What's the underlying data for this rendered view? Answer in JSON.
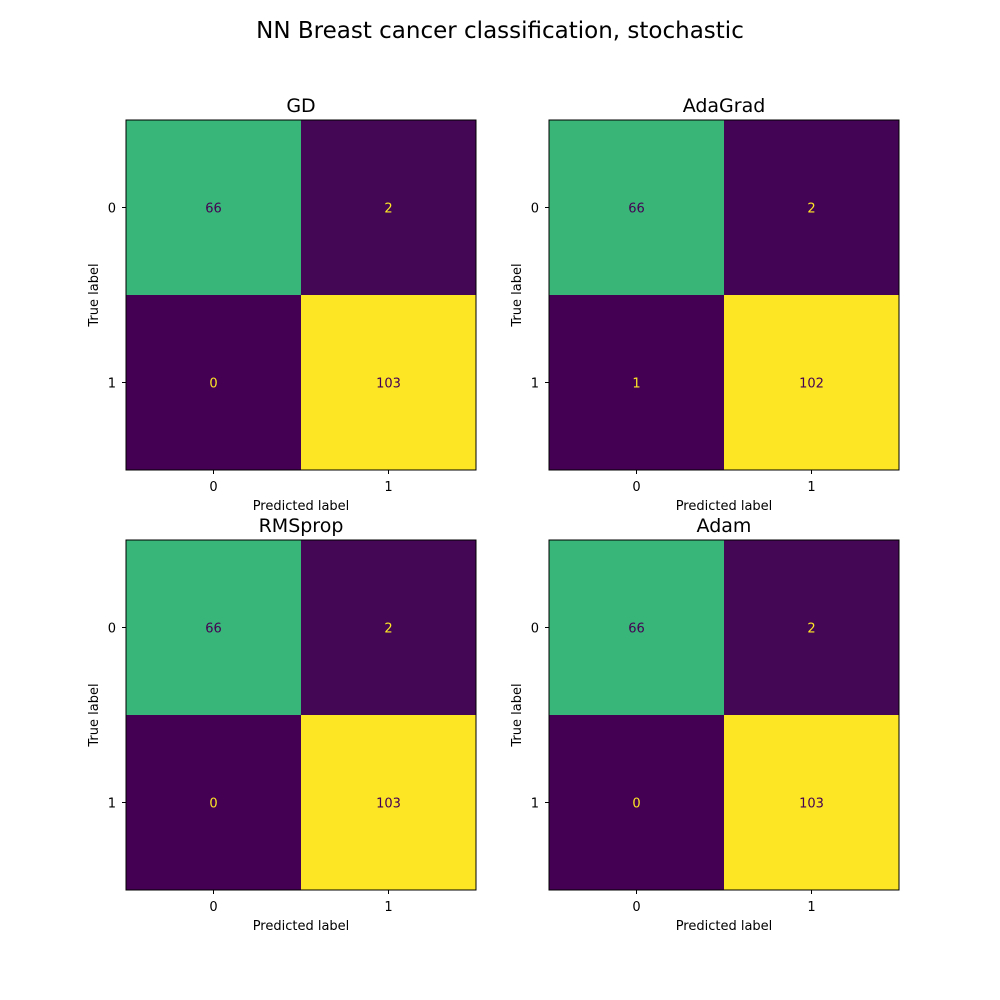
{
  "suptitle": "NN Breast cancer classification, stochastic",
  "colors": {
    "viridis_low": "#440154",
    "viridis_mid": "#2db27d",
    "viridis_high": "#fde725",
    "text_on_dark": "#fde725",
    "text_on_light": "#440154",
    "axes_frame": "#000000"
  },
  "chart_data": [
    {
      "type": "heatmap",
      "title": "GD",
      "xlabel": "Predicted label",
      "ylabel": "True label",
      "x_ticks": [
        "0",
        "1"
      ],
      "y_ticks": [
        "0",
        "1"
      ],
      "matrix": [
        [
          66,
          2
        ],
        [
          0,
          103
        ]
      ],
      "colormap": "viridis",
      "colorbar": false
    },
    {
      "type": "heatmap",
      "title": "AdaGrad",
      "xlabel": "Predicted label",
      "ylabel": "True label",
      "x_ticks": [
        "0",
        "1"
      ],
      "y_ticks": [
        "0",
        "1"
      ],
      "matrix": [
        [
          66,
          2
        ],
        [
          1,
          102
        ]
      ],
      "colormap": "viridis",
      "colorbar": false
    },
    {
      "type": "heatmap",
      "title": "RMSprop",
      "xlabel": "Predicted label",
      "ylabel": "True label",
      "x_ticks": [
        "0",
        "1"
      ],
      "y_ticks": [
        "0",
        "1"
      ],
      "matrix": [
        [
          66,
          2
        ],
        [
          0,
          103
        ]
      ],
      "colormap": "viridis",
      "colorbar": false
    },
    {
      "type": "heatmap",
      "title": "Adam",
      "xlabel": "Predicted label",
      "ylabel": "True label",
      "x_ticks": [
        "0",
        "1"
      ],
      "y_ticks": [
        "0",
        "1"
      ],
      "matrix": [
        [
          66,
          2
        ],
        [
          0,
          103
        ]
      ],
      "colormap": "viridis",
      "colorbar": false
    }
  ]
}
